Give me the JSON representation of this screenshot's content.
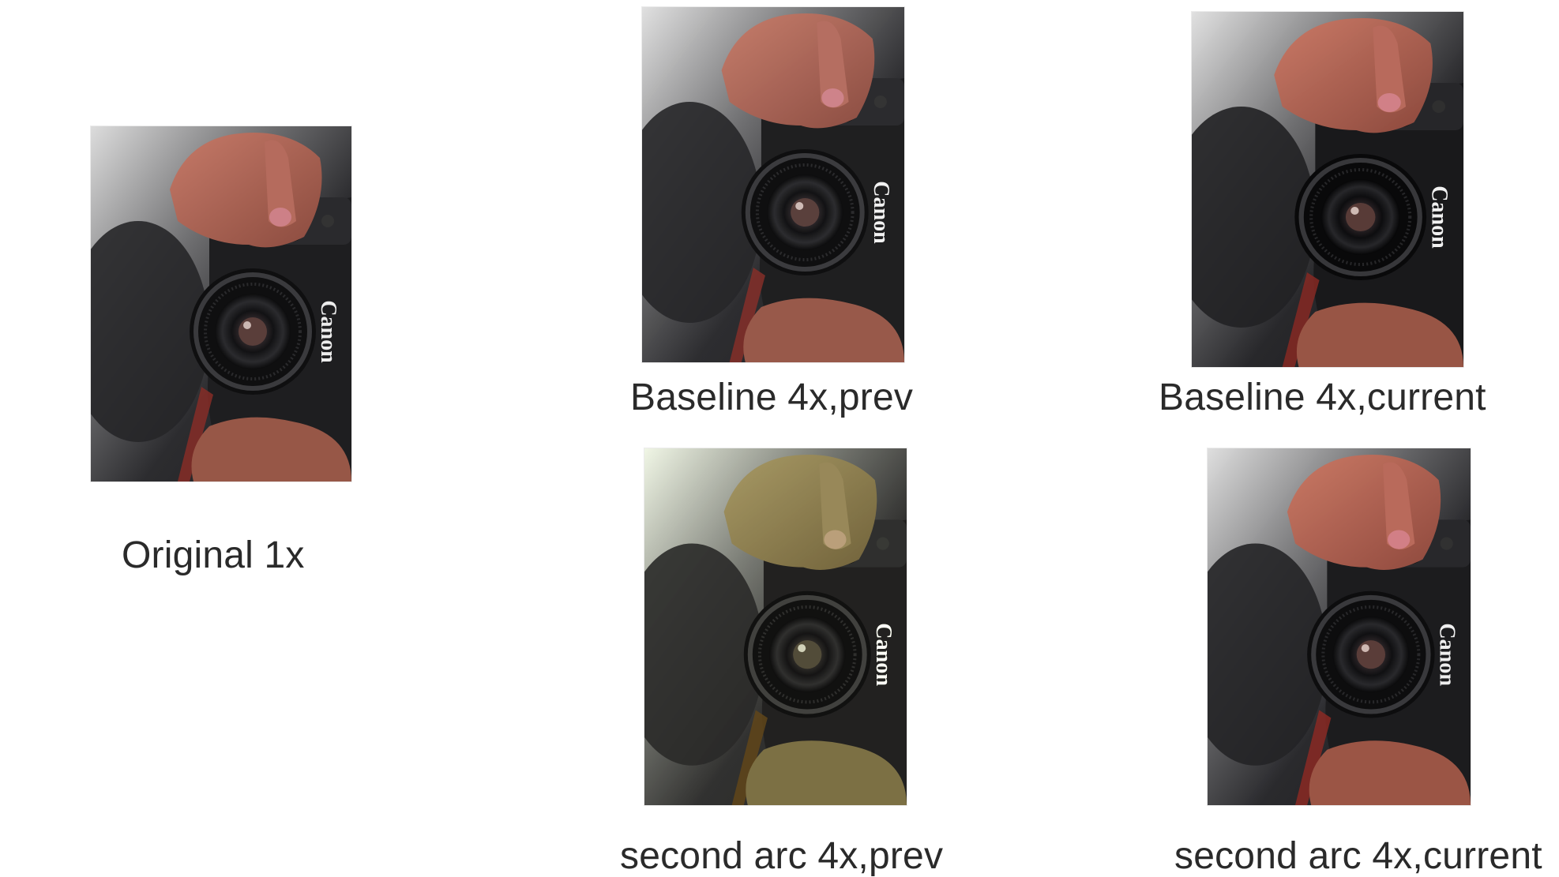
{
  "panels": [
    {
      "id": "orig",
      "caption": "Original 1x"
    },
    {
      "id": "bprev",
      "caption": "Baseline 4x,prev"
    },
    {
      "id": "bcur",
      "caption": "Baseline 4x,current"
    },
    {
      "id": "sprev",
      "caption": "second arc 4x,prev"
    },
    {
      "id": "scur",
      "caption": "second arc 4x,current"
    }
  ],
  "image_brand_text": "Canon",
  "colors": {
    "background": "#ffffff",
    "caption_text": "#2a2a2a",
    "skin": "#b0675a",
    "camera_body": "#1e1e20",
    "dark_bg": "#2b2b2e",
    "light_bg": "#d9dadb"
  }
}
